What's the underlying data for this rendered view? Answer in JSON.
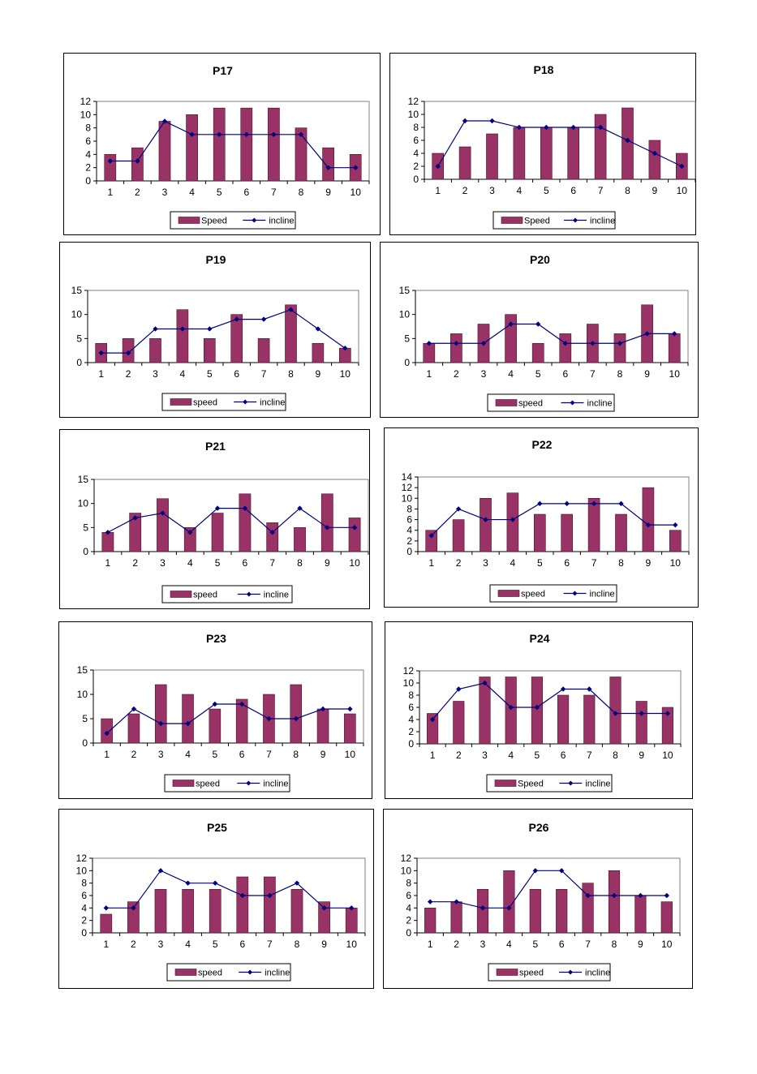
{
  "colors": {
    "bar": "#993366",
    "bar_stroke": "#4a1030",
    "line": "#000080",
    "plot_border": "#808080",
    "axis": "#000000"
  },
  "chart_data": [
    {
      "type": "bar+line",
      "title": "P17",
      "categories": [
        "1",
        "2",
        "3",
        "4",
        "5",
        "6",
        "7",
        "8",
        "9",
        "10"
      ],
      "ylim": [
        0,
        12
      ],
      "yticks": [
        "0",
        "2",
        "4",
        "6",
        "8",
        "10",
        "12"
      ],
      "legend": [
        "Speed",
        "incline"
      ],
      "legend_placement": "bottom",
      "series": [
        {
          "name": "Speed",
          "type": "bar",
          "values": [
            4,
            5,
            9,
            10,
            11,
            11,
            11,
            8,
            5,
            4
          ]
        },
        {
          "name": "incline",
          "type": "line",
          "values": [
            3,
            3,
            9,
            7,
            7,
            7,
            7,
            7,
            2,
            2
          ]
        }
      ]
    },
    {
      "type": "bar+line",
      "title": "P18",
      "categories": [
        "1",
        "2",
        "3",
        "4",
        "5",
        "6",
        "7",
        "8",
        "9",
        "10"
      ],
      "ylim": [
        0,
        12
      ],
      "yticks": [
        "0",
        "2",
        "4",
        "6",
        "8",
        "10",
        "12"
      ],
      "legend": [
        "Speed",
        "incline"
      ],
      "legend_placement": "bottom",
      "series": [
        {
          "name": "Speed",
          "type": "bar",
          "values": [
            4,
            5,
            7,
            8,
            8,
            8,
            10,
            11,
            6,
            4
          ]
        },
        {
          "name": "incline",
          "type": "line",
          "values": [
            2,
            9,
            9,
            8,
            8,
            8,
            8,
            6,
            4,
            2
          ]
        }
      ]
    },
    {
      "type": "bar+line",
      "title": "P19",
      "categories": [
        "1",
        "2",
        "3",
        "4",
        "5",
        "6",
        "7",
        "8",
        "9",
        "10"
      ],
      "ylim": [
        0,
        15
      ],
      "yticks": [
        "0",
        "5",
        "10",
        "15"
      ],
      "legend": [
        "speed",
        "incline"
      ],
      "legend_placement": "bottom",
      "series": [
        {
          "name": "speed",
          "type": "bar",
          "values": [
            4,
            5,
            5,
            11,
            5,
            10,
            5,
            12,
            4,
            3
          ]
        },
        {
          "name": "incline",
          "type": "line",
          "values": [
            2,
            2,
            7,
            7,
            7,
            9,
            9,
            11,
            7,
            3
          ]
        }
      ]
    },
    {
      "type": "bar+line",
      "title": "P20",
      "categories": [
        "1",
        "2",
        "3",
        "4",
        "5",
        "6",
        "7",
        "8",
        "9",
        "10"
      ],
      "ylim": [
        0,
        15
      ],
      "yticks": [
        "0",
        "5",
        "10",
        "15"
      ],
      "legend": [
        "speed",
        "incline"
      ],
      "legend_placement": "bottom",
      "series": [
        {
          "name": "speed",
          "type": "bar",
          "values": [
            4,
            6,
            8,
            10,
            4,
            6,
            8,
            6,
            12,
            6
          ]
        },
        {
          "name": "incline",
          "type": "line",
          "values": [
            4,
            4,
            4,
            8,
            8,
            4,
            4,
            4,
            6,
            6
          ]
        }
      ]
    },
    {
      "type": "bar+line",
      "title": "P21",
      "categories": [
        "1",
        "2",
        "3",
        "4",
        "5",
        "6",
        "7",
        "8",
        "9",
        "10"
      ],
      "ylim": [
        0,
        15
      ],
      "yticks": [
        "0",
        "5",
        "10",
        "15"
      ],
      "legend": [
        "speed",
        "incline"
      ],
      "legend_placement": "bottom",
      "series": [
        {
          "name": "speed",
          "type": "bar",
          "values": [
            4,
            8,
            11,
            5,
            8,
            12,
            6,
            5,
            12,
            7
          ]
        },
        {
          "name": "incline",
          "type": "line",
          "values": [
            4,
            7,
            8,
            4,
            9,
            9,
            4,
            9,
            5,
            5
          ]
        }
      ]
    },
    {
      "type": "bar+line",
      "title": "P22",
      "categories": [
        "1",
        "2",
        "3",
        "4",
        "5",
        "6",
        "7",
        "8",
        "9",
        "10"
      ],
      "ylim": [
        0,
        14
      ],
      "yticks": [
        "0",
        "2",
        "4",
        "6",
        "8",
        "10",
        "12",
        "14"
      ],
      "legend": [
        "speed",
        "incline"
      ],
      "legend_placement": "bottom",
      "series": [
        {
          "name": "speed",
          "type": "bar",
          "values": [
            4,
            6,
            10,
            11,
            7,
            7,
            10,
            7,
            12,
            4
          ]
        },
        {
          "name": "incline",
          "type": "line",
          "values": [
            3,
            8,
            6,
            6,
            9,
            9,
            9,
            9,
            5,
            5
          ]
        }
      ]
    },
    {
      "type": "bar+line",
      "title": "P23",
      "categories": [
        "1",
        "2",
        "3",
        "4",
        "5",
        "6",
        "7",
        "8",
        "9",
        "10"
      ],
      "ylim": [
        0,
        15
      ],
      "yticks": [
        "0",
        "5",
        "10",
        "15"
      ],
      "legend": [
        "speed",
        "incline"
      ],
      "legend_placement": "bottom",
      "series": [
        {
          "name": "speed",
          "type": "bar",
          "values": [
            5,
            6,
            12,
            10,
            7,
            9,
            10,
            12,
            7,
            6
          ]
        },
        {
          "name": "incline",
          "type": "line",
          "values": [
            2,
            7,
            4,
            4,
            8,
            8,
            5,
            5,
            7,
            7
          ]
        }
      ]
    },
    {
      "type": "bar+line",
      "title": "P24",
      "categories": [
        "1",
        "2",
        "3",
        "4",
        "5",
        "6",
        "7",
        "8",
        "9",
        "10"
      ],
      "ylim": [
        0,
        12
      ],
      "yticks": [
        "0",
        "2",
        "4",
        "6",
        "8",
        "10",
        "12"
      ],
      "legend": [
        "Speed",
        "incline"
      ],
      "legend_placement": "bottom",
      "series": [
        {
          "name": "Speed",
          "type": "bar",
          "values": [
            5,
            7,
            11,
            11,
            11,
            8,
            8,
            11,
            7,
            6
          ]
        },
        {
          "name": "incline",
          "type": "line",
          "values": [
            4,
            9,
            10,
            6,
            6,
            9,
            9,
            5,
            5,
            5
          ]
        }
      ]
    },
    {
      "type": "bar+line",
      "title": "P25",
      "categories": [
        "1",
        "2",
        "3",
        "4",
        "5",
        "6",
        "7",
        "8",
        "9",
        "10"
      ],
      "ylim": [
        0,
        12
      ],
      "yticks": [
        "0",
        "2",
        "4",
        "6",
        "8",
        "10",
        "12"
      ],
      "legend": [
        "speed",
        "incline"
      ],
      "legend_placement": "bottom",
      "series": [
        {
          "name": "speed",
          "type": "bar",
          "values": [
            3,
            5,
            7,
            7,
            7,
            9,
            9,
            7,
            5,
            4
          ]
        },
        {
          "name": "incline",
          "type": "line",
          "values": [
            4,
            4,
            10,
            8,
            8,
            6,
            6,
            8,
            4,
            4
          ]
        }
      ]
    },
    {
      "type": "bar+line",
      "title": "P26",
      "categories": [
        "1",
        "2",
        "3",
        "4",
        "5",
        "6",
        "7",
        "8",
        "9",
        "10"
      ],
      "ylim": [
        0,
        12
      ],
      "yticks": [
        "0",
        "2",
        "4",
        "6",
        "8",
        "10",
        "12"
      ],
      "legend": [
        "speed",
        "incline"
      ],
      "legend_placement": "bottom",
      "series": [
        {
          "name": "speed",
          "type": "bar",
          "values": [
            4,
            5,
            7,
            10,
            7,
            7,
            8,
            10,
            6,
            5
          ]
        },
        {
          "name": "incline",
          "type": "line",
          "values": [
            5,
            5,
            4,
            4,
            10,
            10,
            6,
            6,
            6,
            6
          ]
        }
      ]
    }
  ]
}
